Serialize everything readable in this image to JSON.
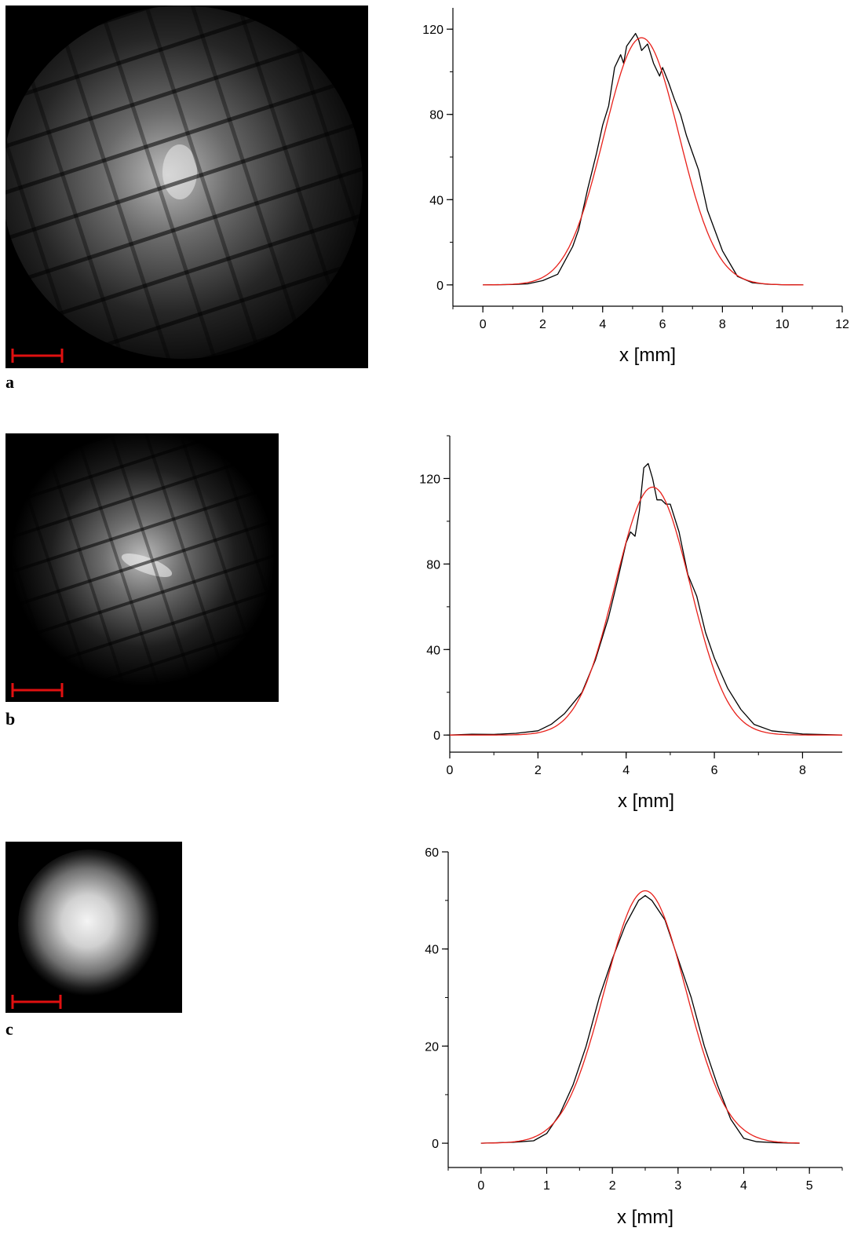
{
  "panels": [
    {
      "label": "a"
    },
    {
      "label": "b"
    },
    {
      "label": "c"
    }
  ],
  "colors": {
    "measured": "#000000",
    "fit": "#e8201a",
    "scale_bar": "#e01010",
    "image_bg": "#000000"
  },
  "chart_data": [
    {
      "type": "line",
      "xlabel": "x [mm]",
      "ylabel": "",
      "xlim": [
        -1,
        12
      ],
      "ylim": [
        -10,
        130
      ],
      "xticks": [
        "0",
        "2",
        "4",
        "6",
        "8",
        "10",
        "12"
      ],
      "yticks": [
        "0",
        "40",
        "80",
        "120"
      ],
      "series": [
        {
          "role": "measured",
          "x": [
            0,
            1,
            1.5,
            2,
            2.5,
            3,
            3.2,
            3.5,
            3.8,
            4,
            4.2,
            4.4,
            4.6,
            4.7,
            4.8,
            5,
            5.1,
            5.2,
            5.3,
            5.5,
            5.7,
            5.9,
            6,
            6.2,
            6.4,
            6.6,
            6.8,
            7,
            7.2,
            7.5,
            8,
            8.5,
            9,
            9.5,
            10,
            10.7
          ],
          "y": [
            0,
            0.2,
            0.5,
            2,
            5,
            18,
            26,
            45,
            62,
            75,
            84,
            102,
            108,
            104,
            112,
            116,
            118,
            115,
            110,
            113,
            104,
            98,
            102,
            95,
            87,
            80,
            70,
            62,
            54,
            35,
            16,
            4,
            1,
            0.3,
            0.1,
            0
          ]
        },
        {
          "role": "fit",
          "mu": 5.3,
          "sigma": 1.25,
          "amplitude": 116,
          "x_range": [
            0,
            10.7
          ]
        }
      ]
    },
    {
      "type": "line",
      "xlabel": "x [mm]",
      "ylabel": "",
      "xlim": [
        0,
        8.9
      ],
      "ylim": [
        -8,
        140
      ],
      "xticks": [
        "0",
        "2",
        "4",
        "6",
        "8"
      ],
      "yticks": [
        "0",
        "40",
        "80",
        "120"
      ],
      "series": [
        {
          "role": "measured",
          "x": [
            0,
            0.5,
            1,
            1.5,
            2,
            2.3,
            2.6,
            2.8,
            3,
            3.3,
            3.6,
            3.8,
            4,
            4.1,
            4.2,
            4.3,
            4.4,
            4.5,
            4.6,
            4.7,
            4.8,
            4.9,
            5,
            5.2,
            5.4,
            5.6,
            5.8,
            6,
            6.3,
            6.6,
            6.9,
            7.3,
            8,
            8.9
          ],
          "y": [
            0,
            0.4,
            0.3,
            0.8,
            2,
            5,
            10,
            15,
            20,
            35,
            55,
            72,
            90,
            95,
            93,
            105,
            125,
            127,
            120,
            110,
            110,
            108,
            108,
            95,
            75,
            65,
            48,
            36,
            22,
            12,
            5,
            2,
            0.5,
            0
          ]
        },
        {
          "role": "fit",
          "mu": 4.6,
          "sigma": 0.85,
          "amplitude": 116,
          "x_range": [
            0,
            8.9
          ]
        }
      ]
    },
    {
      "type": "line",
      "xlabel": "x [mm]",
      "ylabel": "",
      "xlim": [
        -0.5,
        5.5
      ],
      "ylim": [
        -5,
        60
      ],
      "xticks": [
        "0",
        "1",
        "2",
        "3",
        "4",
        "5"
      ],
      "yticks": [
        "0",
        "20",
        "40",
        "60"
      ],
      "series": [
        {
          "role": "measured",
          "x": [
            0,
            0.5,
            0.8,
            1,
            1.2,
            1.4,
            1.6,
            1.8,
            2,
            2.2,
            2.4,
            2.5,
            2.6,
            2.8,
            3,
            3.2,
            3.4,
            3.6,
            3.8,
            4,
            4.2,
            4.5,
            4.85
          ],
          "y": [
            0,
            0.2,
            0.5,
            2,
            6,
            12,
            20,
            30,
            38,
            45,
            50,
            51,
            50,
            46,
            38,
            30,
            20,
            12,
            5,
            1,
            0.3,
            0.1,
            0
          ]
        },
        {
          "role": "fit",
          "mu": 2.5,
          "sigma": 0.62,
          "amplitude": 52,
          "x_range": [
            0,
            4.85
          ]
        }
      ]
    }
  ]
}
